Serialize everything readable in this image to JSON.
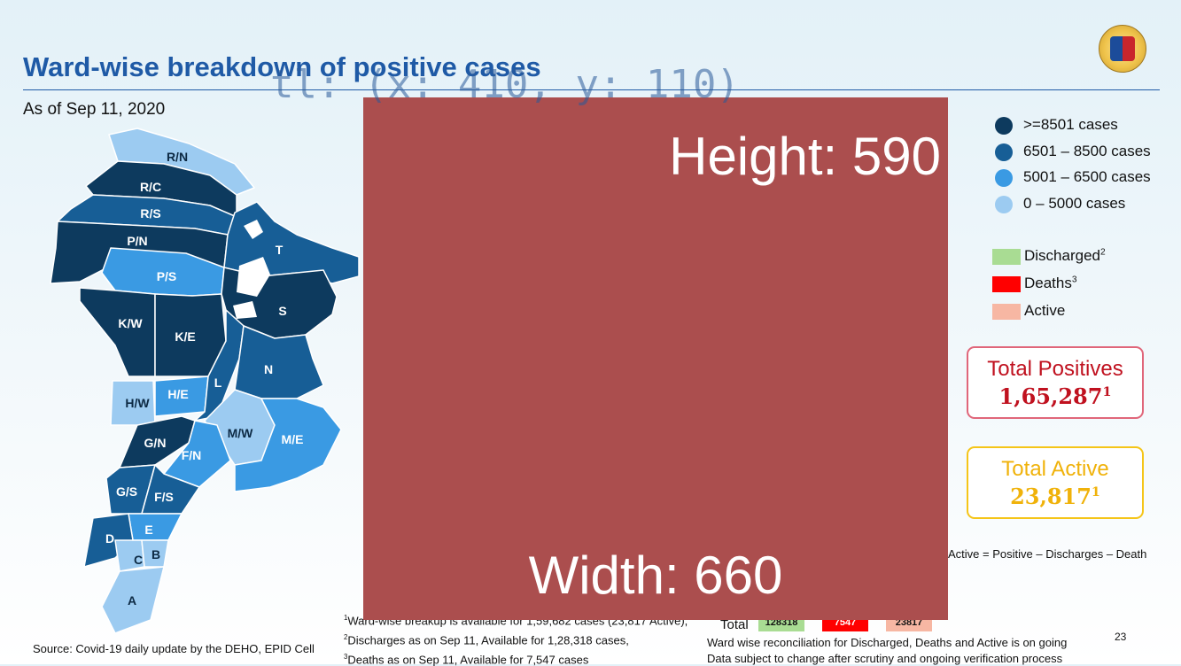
{
  "header": {
    "title": "Ward-wise breakdown of positive cases",
    "as_of": "As of Sep 11, 2020"
  },
  "map": {
    "wards": [
      {
        "id": "R/N",
        "range": "0 – 5000 cases"
      },
      {
        "id": "R/C",
        "range": ">=8501 cases"
      },
      {
        "id": "R/S",
        "range": "6501 – 8500 cases"
      },
      {
        "id": "P/N",
        "range": ">=8501 cases"
      },
      {
        "id": "P/S",
        "range": "5001 – 6500 cases"
      },
      {
        "id": "K/W",
        "range": ">=8501 cases"
      },
      {
        "id": "K/E",
        "range": ">=8501 cases"
      },
      {
        "id": "H/W",
        "range": "0 – 5000 cases"
      },
      {
        "id": "H/E",
        "range": "5001 – 6500 cases"
      },
      {
        "id": "T",
        "range": "6501 – 8500 cases"
      },
      {
        "id": "S",
        "range": ">=8501 cases"
      },
      {
        "id": "L",
        "range": "6501 – 8500 cases"
      },
      {
        "id": "N",
        "range": "6501 – 8500 cases"
      },
      {
        "id": "M/W",
        "range": "0 – 5000 cases"
      },
      {
        "id": "M/E",
        "range": "5001 – 6500 cases"
      },
      {
        "id": "G/N",
        "range": ">=8501 cases"
      },
      {
        "id": "F/N",
        "range": "5001 – 6500 cases"
      },
      {
        "id": "G/S",
        "range": "6501 – 8500 cases"
      },
      {
        "id": "F/S",
        "range": "6501 – 8500 cases"
      },
      {
        "id": "E",
        "range": "5001 – 6500 cases"
      },
      {
        "id": "D",
        "range": "6501 – 8500 cases"
      },
      {
        "id": "C",
        "range": "0 – 5000 cases"
      },
      {
        "id": "B",
        "range": "0 – 5000 cases"
      },
      {
        "id": "A",
        "range": "0 – 5000 cases"
      }
    ]
  },
  "legend": {
    "ranges": [
      {
        "label": ">=8501 cases",
        "color": "#0d3a5e"
      },
      {
        "label": "6501 – 8500 cases",
        "color": "#175e96"
      },
      {
        "label": "5001 – 6500 cases",
        "color": "#3a9ae3"
      },
      {
        "label": "0 – 5000 cases",
        "color": "#9ccbf1"
      }
    ],
    "outcomes": [
      {
        "label": "Discharged",
        "sup": "2",
        "color": "#a9dc93"
      },
      {
        "label": "Deaths",
        "sup": "3",
        "color": "#ff0000"
      },
      {
        "label": "Active",
        "sup": "",
        "color": "#f7b7a3"
      }
    ]
  },
  "totals": {
    "positives_label": "Total Positives",
    "positives_value": "1,65,287",
    "positives_sup": "1",
    "active_label": "Total Active",
    "active_value": "23,817",
    "active_sup": "1"
  },
  "formula": "Active = Positive – Discharges – Death",
  "overlay": {
    "annotation": "tl: (x: 410, y: 110)",
    "height_label": "Height: 590",
    "width_label": "Width: 660"
  },
  "footnotes": {
    "f1": "Ward-wise breakup is available for 1,59,682 cases (23,817 Active),",
    "f2": "Discharges as on Sep 11, Available for 1,28,318  cases,",
    "f3": "Deaths as on Sep 11, Available for 7,547 cases"
  },
  "total_row": {
    "label": "Total",
    "discharged": "128318",
    "deaths": "7547",
    "active": "23817"
  },
  "notes": {
    "reconciliation": "Ward wise reconciliation for Discharged, Deaths and Active is on going",
    "disclaimer": "Data subject to change after scrutiny and ongoing verification process"
  },
  "source": "Source: Covid-19 daily update by the DEHO, EPID Cell",
  "page_number": "23",
  "colors": {
    "title": "#1f5aa6",
    "total_positives": "#c0111f",
    "total_active": "#f0b20a"
  }
}
